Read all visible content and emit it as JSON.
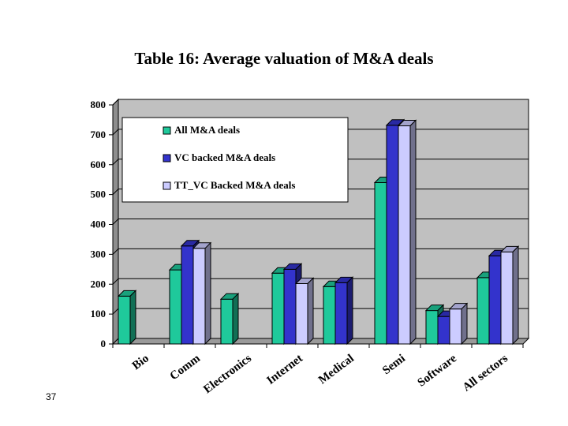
{
  "title": "Table 16: Average valuation of M&A deals",
  "page_number": "37",
  "colors": {
    "plot_background": "#c0c0c0",
    "gridline": "#000000",
    "series": [
      "#1fc99b",
      "#3333cc",
      "#ccccff"
    ]
  },
  "chart_data": {
    "type": "bar",
    "title": "Table 16: Average valuation of M&A deals",
    "xlabel": "",
    "ylabel": "",
    "ylim": [
      0,
      800
    ],
    "yticks": [
      0,
      100,
      200,
      300,
      400,
      500,
      600,
      700,
      800
    ],
    "grid": true,
    "legend_position": "top-left",
    "categories": [
      "Bio",
      "Comm",
      "Electronics",
      "Internet",
      "Medical",
      "Semi",
      "Software",
      "All sectors"
    ],
    "series": [
      {
        "name": "All M&A deals",
        "values": [
          160,
          248,
          150,
          237,
          192,
          540,
          112,
          222
        ]
      },
      {
        "name": "VC backed M&A deals",
        "values": [
          null,
          328,
          null,
          250,
          205,
          732,
          92,
          295
        ]
      },
      {
        "name": "TT_VC Backed M&A deals",
        "values": [
          null,
          320,
          null,
          202,
          null,
          730,
          117,
          308
        ]
      }
    ]
  }
}
